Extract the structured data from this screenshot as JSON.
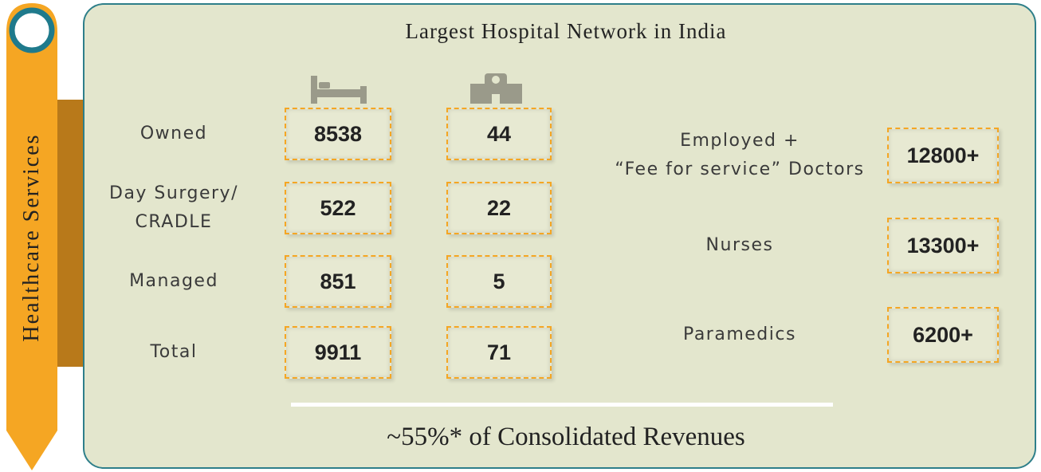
{
  "sidebar": {
    "label": "Healthcare Services"
  },
  "title": "Largest Hospital Network in India",
  "rows": [
    {
      "label": [
        "Owned"
      ],
      "beds": 8538,
      "hospitals": 44
    },
    {
      "label": [
        "Day Surgery/",
        "CRADLE"
      ],
      "beds": 522,
      "hospitals": 22
    },
    {
      "label": [
        "Managed"
      ],
      "beds": 851,
      "hospitals": 5
    },
    {
      "label": [
        "Total"
      ],
      "beds": 9911,
      "hospitals": 71
    }
  ],
  "staff": [
    {
      "label": [
        "Employed +",
        "“Fee for service” Doctors"
      ],
      "value": "12800+"
    },
    {
      "label": [
        "Nurses"
      ],
      "value": "13300+"
    },
    {
      "label": [
        "Paramedics"
      ],
      "value": "6200+"
    }
  ],
  "footer": "~55%* of Consolidated Revenues"
}
